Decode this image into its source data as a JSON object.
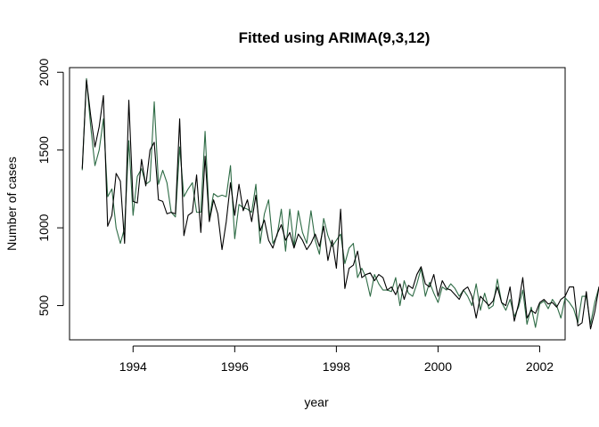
{
  "chart_data": {
    "type": "line",
    "title": "Fitted using ARIMA(9,3,12)",
    "xlabel": "year",
    "ylabel": "Number of cases",
    "xlim": [
      1992.75,
      2002.5
    ],
    "ylim": [
      280,
      2030
    ],
    "x_ticks": [
      1994,
      1996,
      1998,
      2000,
      2002
    ],
    "x_tick_labels": [
      "1994",
      "1996",
      "1998",
      "2000",
      "2002"
    ],
    "y_ticks": [
      500,
      1000,
      1500,
      2000
    ],
    "y_tick_labels": [
      "500",
      "1000",
      "1500",
      "2000"
    ],
    "grid": false,
    "legend": "none",
    "x_start": 1993.0,
    "x_step": 0.0833333,
    "series": [
      {
        "color": "#000000",
        "values": [
          1380,
          1950,
          1720,
          1520,
          1650,
          1850,
          1010,
          1080,
          1350,
          1300,
          900,
          1820,
          1170,
          1160,
          1440,
          1270,
          1500,
          1550,
          1180,
          1170,
          1090,
          1100,
          1090,
          1700,
          950,
          1080,
          1100,
          1340,
          970,
          1460,
          1040,
          1180,
          1090,
          860,
          1040,
          1290,
          1080,
          1280,
          1110,
          1180,
          1040,
          1210,
          980,
          1050,
          920,
          870,
          960,
          1020,
          920,
          970,
          870,
          960,
          920,
          860,
          900,
          960,
          880,
          1010,
          790,
          920,
          740,
          1120,
          610,
          740,
          760,
          850,
          680,
          700,
          710,
          660,
          700,
          680,
          600,
          620,
          570,
          640,
          540,
          630,
          610,
          700,
          750,
          640,
          620,
          700,
          560,
          660,
          610,
          600,
          570,
          540,
          600,
          620,
          560,
          420,
          560,
          530,
          500,
          530,
          620,
          520,
          500,
          620,
          400,
          510,
          680,
          420,
          470,
          450,
          520,
          540,
          510,
          520,
          490,
          540,
          560,
          620,
          620,
          370,
          390,
          590,
          350,
          460,
          620,
          540
        ]
      },
      {
        "color": "#2e6b45",
        "values": [
          1370,
          1960,
          1650,
          1400,
          1500,
          1700,
          1200,
          1250,
          1000,
          900,
          1000,
          1560,
          1080,
          1330,
          1380,
          1280,
          1300,
          1810,
          1280,
          1370,
          1290,
          1100,
          1070,
          1520,
          1200,
          1250,
          1290,
          1100,
          1100,
          1620,
          1060,
          1220,
          1200,
          1210,
          1200,
          1400,
          930,
          1150,
          1130,
          1120,
          1100,
          1280,
          900,
          1090,
          1180,
          900,
          950,
          1120,
          850,
          1120,
          880,
          1110,
          970,
          900,
          1110,
          920,
          830,
          1060,
          950,
          880,
          920,
          960,
          770,
          870,
          900,
          680,
          740,
          680,
          560,
          700,
          640,
          600,
          600,
          590,
          680,
          500,
          660,
          580,
          560,
          640,
          740,
          560,
          650,
          580,
          520,
          620,
          600,
          640,
          610,
          560,
          600,
          560,
          500,
          640,
          470,
          580,
          480,
          500,
          670,
          520,
          470,
          540,
          430,
          490,
          600,
          380,
          490,
          360,
          510,
          530,
          480,
          540,
          500,
          420,
          550,
          520,
          480,
          390,
          560,
          560,
          380,
          520,
          620,
          500
        ]
      }
    ]
  }
}
